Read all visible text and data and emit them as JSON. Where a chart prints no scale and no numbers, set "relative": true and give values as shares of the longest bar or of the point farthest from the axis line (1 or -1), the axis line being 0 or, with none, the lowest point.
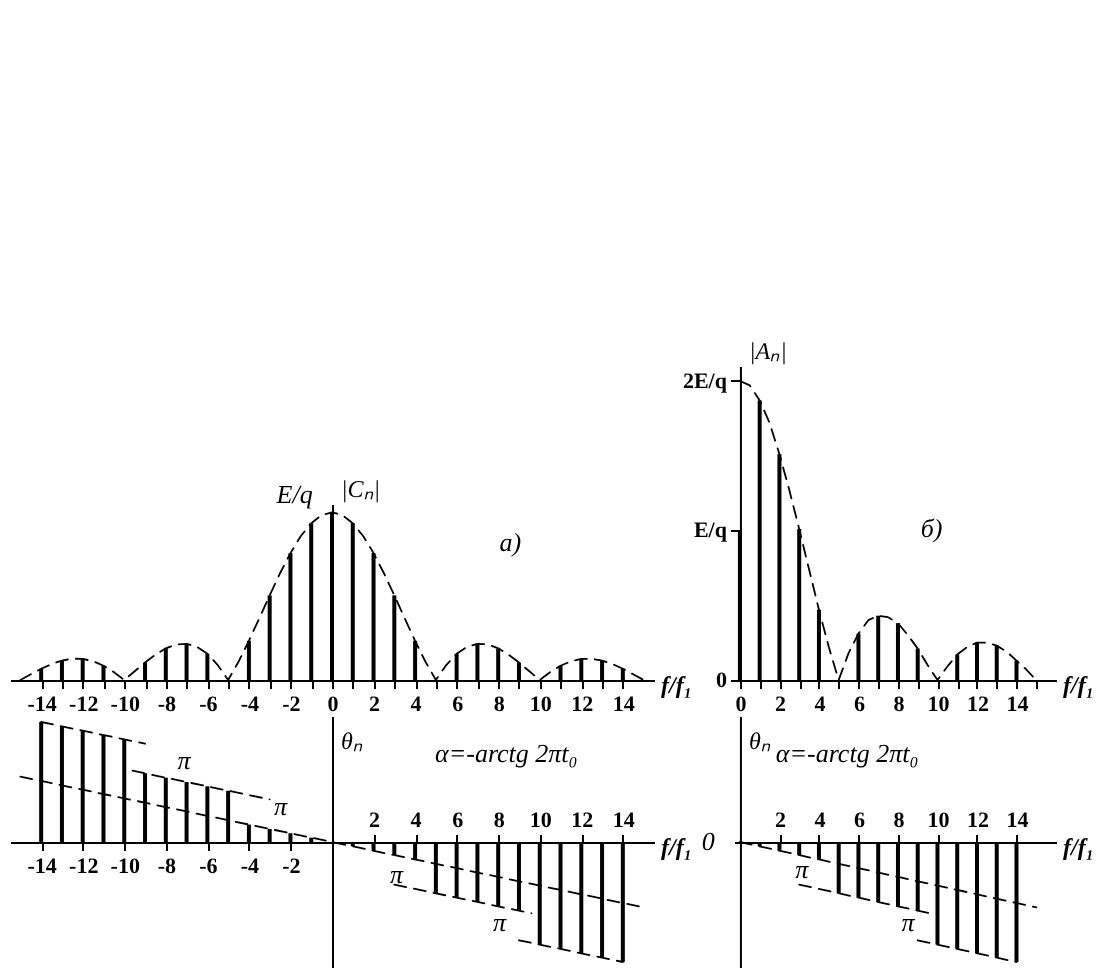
{
  "chart_data": [
    {
      "type": "bar",
      "relative": true,
      "xlabel": "f/f₁",
      "ylabel": "|Cₙ|",
      "xlim": [
        -15.5,
        15.5
      ],
      "xticks": [
        -14,
        {
          "value": -13,
          "label": null
        },
        -12,
        {
          "value": -11,
          "label": null
        },
        -10,
        {
          "value": -9,
          "label": null
        },
        -8,
        {
          "value": -7,
          "label": null
        },
        -6,
        {
          "value": -5,
          "label": null
        },
        -4,
        {
          "value": -3,
          "label": null
        },
        -2,
        {
          "value": -1,
          "label": null
        },
        0,
        {
          "value": 1,
          "label": null
        },
        2,
        {
          "value": 3,
          "label": null
        },
        4,
        {
          "value": 5,
          "label": null
        },
        6,
        {
          "value": 7,
          "label": null
        },
        8,
        {
          "value": 9,
          "label": null
        },
        10,
        {
          "value": 11,
          "label": null
        },
        12,
        {
          "value": 13,
          "label": null
        },
        14
      ],
      "series": [
        {
          "color": "#000000",
          "x": [
            -14,
            -13,
            -12,
            -11,
            -10,
            -9,
            -8,
            -7,
            -6,
            -5,
            -4,
            -3,
            -2,
            -1,
            0,
            1,
            2,
            3,
            4,
            5,
            6,
            7,
            8,
            9,
            10,
            11,
            12,
            13,
            14
          ],
          "values": [
            0.067,
            0.116,
            0.126,
            0.085,
            0,
            0.104,
            0.189,
            0.216,
            0.156,
            0,
            0.234,
            0.505,
            0.757,
            0.935,
            1,
            0.935,
            0.757,
            0.505,
            0.234,
            0,
            0.156,
            0.216,
            0.189,
            0.104,
            0,
            0.085,
            0.126,
            0.116,
            0.067
          ]
        },
        {
          "type": "line",
          "line_style": "dashed",
          "color": "#000000",
          "x": [
            -15,
            -14.5,
            -14,
            -13.5,
            -13,
            -12.5,
            -12,
            -11.5,
            -11,
            -10.5,
            -10,
            -9.5,
            -9,
            -8.5,
            -8,
            -7.5,
            -7,
            -6.5,
            -6,
            -5.5,
            -5,
            -4.5,
            -4,
            -3.5,
            -3,
            -2.5,
            -2,
            -1.5,
            -1,
            -0.5,
            0,
            0.5,
            1,
            1.5,
            2,
            2.5,
            3,
            3.5,
            4,
            4.5,
            5,
            5.5,
            6,
            6.5,
            7,
            7.5,
            8,
            8.5,
            9,
            9.5,
            10,
            10.5,
            11,
            11.5,
            12,
            12.5,
            13,
            13.5,
            14,
            14.5,
            15
          ],
          "values": [
            0,
            0.034,
            0.067,
            0.095,
            0.116,
            0.127,
            0.126,
            0.112,
            0.085,
            0.047,
            0,
            0.052,
            0.104,
            0.151,
            0.189,
            0.212,
            0.216,
            0.198,
            0.156,
            0.089,
            0,
            0.109,
            0.234,
            0.368,
            0.505,
            0.637,
            0.757,
            0.859,
            0.935,
            0.984,
            1,
            0.984,
            0.935,
            0.859,
            0.757,
            0.637,
            0.505,
            0.368,
            0.234,
            0.109,
            0,
            0.089,
            0.156,
            0.198,
            0.216,
            0.212,
            0.189,
            0.151,
            0.104,
            0.052,
            0,
            0.047,
            0.085,
            0.112,
            0.126,
            0.127,
            0.116,
            0.095,
            0.067,
            0.034,
            0
          ]
        }
      ],
      "annotations": [
        "E/q",
        "а)"
      ]
    },
    {
      "type": "bar",
      "xlabel": "f/f₁",
      "ylabel": "|Aₙ|",
      "xlim": [
        -0.3,
        16
      ],
      "ylim": [
        0,
        2.1
      ],
      "yticks": [
        0,
        {
          "value": 1,
          "label": "E/q"
        },
        {
          "value": 2,
          "label": "2E/q"
        }
      ],
      "xticks": [
        0,
        {
          "value": 1,
          "label": null
        },
        2,
        {
          "value": 3,
          "label": null
        },
        4,
        {
          "value": 5,
          "label": null
        },
        6,
        {
          "value": 7,
          "label": null
        },
        8,
        {
          "value": 9,
          "label": null
        },
        10,
        {
          "value": 11,
          "label": null
        },
        12,
        {
          "value": 13,
          "label": null
        },
        14,
        {
          "value": 15,
          "label": null
        }
      ],
      "series": [
        {
          "color": "#000000",
          "x": [
            0,
            1,
            2,
            3,
            4,
            5,
            6,
            7,
            8,
            9,
            10,
            11,
            12,
            13,
            14
          ],
          "values": [
            1,
            1.87,
            1.51,
            1.01,
            0.47,
            0,
            0.31,
            0.43,
            0.38,
            0.21,
            0,
            0.17,
            0.25,
            0.23,
            0.13
          ]
        },
        {
          "type": "line",
          "line_style": "dashed",
          "color": "#000000",
          "x": [
            0,
            0.5,
            1,
            1.5,
            2,
            2.5,
            3,
            3.5,
            4,
            4.5,
            5,
            5.5,
            6,
            6.5,
            7,
            7.5,
            8,
            8.5,
            9,
            9.5,
            10,
            10.5,
            11,
            11.5,
            12,
            12.5,
            13,
            13.5,
            14,
            14.5,
            15
          ],
          "values": [
            2,
            1.97,
            1.87,
            1.72,
            1.51,
            1.27,
            1.01,
            0.74,
            0.47,
            0.22,
            0,
            0.18,
            0.31,
            0.4,
            0.43,
            0.42,
            0.38,
            0.3,
            0.21,
            0.1,
            0,
            0.09,
            0.17,
            0.22,
            0.25,
            0.25,
            0.23,
            0.19,
            0.13,
            0.07,
            0
          ]
        }
      ],
      "annotations": [
        "б)"
      ]
    },
    {
      "type": "bar",
      "relative": true,
      "xlabel": "f/f₁",
      "ylabel": "θₙ",
      "xlim": [
        -15.5,
        15.5
      ],
      "xticks": [
        -14,
        -12,
        -10,
        -8,
        -6,
        -4,
        -2
      ],
      "x2lim": [
        -15.5,
        15.5
      ],
      "x2ticks": [
        2,
        4,
        6,
        8,
        10,
        12,
        14
      ],
      "series": [
        {
          "color": "#000000",
          "x": [
            -14,
            -13,
            -12,
            -11,
            -10,
            -9,
            -8,
            -7,
            -6,
            -5,
            -4,
            -3,
            -2,
            -1,
            0,
            1,
            2,
            3,
            4,
            5,
            6,
            7,
            8,
            9,
            10,
            11,
            12,
            13,
            14
          ],
          "values": [
            1,
            0.964,
            0.927,
            0.891,
            0.855,
            0.573,
            0.536,
            0.5,
            0.464,
            0.427,
            0.145,
            0.109,
            0.073,
            0.036,
            0,
            -0.036,
            -0.073,
            -0.109,
            -0.145,
            -0.427,
            -0.464,
            -0.5,
            -0.536,
            -0.573,
            -0.855,
            -0.891,
            -0.927,
            -0.964,
            -1
          ]
        },
        {
          "type": "line",
          "line_style": "dashed",
          "color": "#000000",
          "x": [
            -15,
            15
          ],
          "values": [
            0.545,
            -0.545
          ]
        },
        {
          "type": "line",
          "line_style": "dashed",
          "color": "#000000",
          "x": [
            -9.6,
            -3
          ],
          "values": [
            0.594,
            0.355
          ]
        },
        {
          "type": "line",
          "line_style": "dashed",
          "color": "#000000",
          "x": [
            -14,
            -9
          ],
          "values": [
            1.0,
            0.819
          ]
        },
        {
          "type": "line",
          "line_style": "dashed",
          "color": "#000000",
          "x": [
            3,
            9.6
          ],
          "values": [
            -0.355,
            -0.594
          ]
        },
        {
          "type": "line",
          "line_style": "dashed",
          "color": "#000000",
          "x": [
            9,
            14
          ],
          "values": [
            -0.819,
            -1.0
          ]
        }
      ],
      "annotations": [
        "π",
        "π",
        "π",
        "π",
        "α=-arctg 2πt₀"
      ]
    },
    {
      "type": "bar",
      "relative": true,
      "xlabel": "f/f₁",
      "ylabel": "θₙ",
      "xlim": [
        -0.3,
        16
      ],
      "xticks": [
        2,
        4,
        6,
        8,
        10,
        12,
        14
      ],
      "series": [
        {
          "color": "#000000",
          "x": [
            0,
            1,
            2,
            3,
            4,
            5,
            6,
            7,
            8,
            9,
            10,
            11,
            12,
            13,
            14
          ],
          "values": [
            0,
            -0.036,
            -0.073,
            -0.109,
            -0.145,
            -0.427,
            -0.464,
            -0.5,
            -0.536,
            -0.573,
            -0.855,
            -0.891,
            -0.927,
            -0.964,
            -1
          ]
        },
        {
          "type": "line",
          "line_style": "dashed",
          "color": "#000000",
          "x": [
            0,
            15
          ],
          "values": [
            0,
            -0.545
          ]
        },
        {
          "type": "line",
          "line_style": "dashed",
          "color": "#000000",
          "x": [
            3,
            9.6
          ],
          "values": [
            -0.355,
            -0.594
          ]
        },
        {
          "type": "line",
          "line_style": "dashed",
          "color": "#000000",
          "x": [
            9,
            14
          ],
          "values": [
            -0.819,
            -1.0
          ]
        }
      ],
      "annotations": [
        "π",
        "π",
        "0",
        "α=-arctg 2πt₀"
      ]
    }
  ]
}
